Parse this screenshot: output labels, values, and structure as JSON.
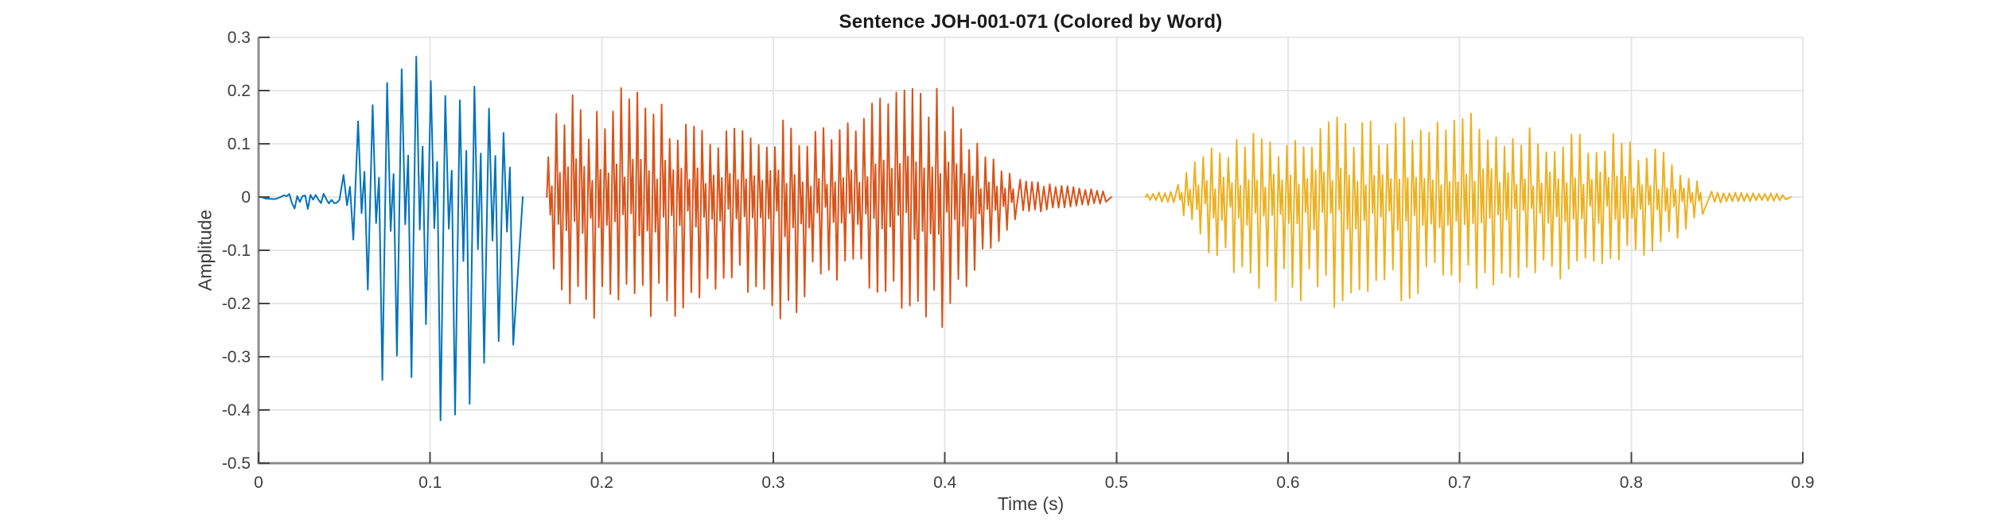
{
  "title": "Sentence JOH-001-071 (Colored by Word)",
  "xlabel": "Time (s)",
  "ylabel": "Amplitude",
  "axes": {
    "xticks": [
      0,
      0.1,
      0.2,
      0.3,
      0.4,
      0.5,
      0.6,
      0.7,
      0.8,
      0.9
    ],
    "xtick_labels": [
      "0",
      "0.1",
      "0.2",
      "0.3",
      "0.4",
      "0.5",
      "0.6",
      "0.7",
      "0.8",
      "0.9"
    ],
    "yticks": [
      0.3,
      0.2,
      0.1,
      0,
      -0.1,
      -0.2,
      -0.3,
      -0.4,
      -0.5
    ],
    "ytick_labels": [
      "0.3",
      "0.2",
      "0.1",
      "0",
      "-0.1",
      "-0.2",
      "-0.3",
      "-0.4",
      "-0.5"
    ],
    "grid": true,
    "grid_color": "#e6e6e6",
    "axis_color": "#8c8c8c",
    "tick_color": "#454545",
    "text_color": "#3d3d3d",
    "title_color": "#1a1a1a",
    "background": "#ffffff"
  },
  "chart_data": {
    "type": "line",
    "subtype": "audio-waveform",
    "title": "Sentence JOH-001-071 (Colored by Word)",
    "xlabel": "Time (s)",
    "ylabel": "Amplitude",
    "xlim": [
      0,
      0.9
    ],
    "ylim": [
      -0.5,
      0.3
    ],
    "grid": true,
    "legend": "none",
    "series": [
      {
        "name": "word_1",
        "color": "#0072BD",
        "t_start": 0.001,
        "t_end": 0.154,
        "peak_amplitude": 0.295,
        "min_amplitude": -0.44,
        "parts": [
          {
            "mode": "noise",
            "freq": 650,
            "env": [
              [
                0.001,
                -0.003,
                0.003
              ],
              [
                0.017,
                -0.005,
                0.005
              ],
              [
                0.02,
                -0.03,
                0.026
              ],
              [
                0.0235,
                -0.034,
                0.03
              ],
              [
                0.026,
                -0.016,
                0.015
              ],
              [
                0.029,
                -0.03,
                0.023
              ],
              [
                0.032,
                -0.022,
                0.018
              ],
              [
                0.035,
                -0.013,
                0.012
              ],
              [
                0.039,
                -0.016,
                0.014
              ],
              [
                0.043,
                -0.013,
                0.012
              ],
              [
                0.048,
                -0.011,
                0.01
              ]
            ]
          },
          {
            "mode": "zigzag",
            "freq": 118,
            "env": [
              [
                0.048,
                -0.025,
                0.035
              ],
              [
                0.052,
                -0.08,
                0.06
              ],
              [
                0.056,
                -0.13,
                0.1
              ],
              [
                0.06,
                -0.16,
                0.15
              ],
              [
                0.064,
                -0.24,
                0.18
              ],
              [
                0.068,
                -0.36,
                0.2
              ],
              [
                0.073,
                -0.44,
                0.21
              ],
              [
                0.079,
                -0.43,
                0.22
              ],
              [
                0.085,
                -0.35,
                0.24
              ],
              [
                0.091,
                -0.33,
                0.26
              ],
              [
                0.096,
                -0.38,
                0.27
              ],
              [
                0.101,
                -0.4,
                0.29
              ],
              [
                0.105,
                -0.44,
                0.295
              ],
              [
                0.11,
                -0.41,
                0.26
              ],
              [
                0.115,
                -0.43,
                0.25
              ],
              [
                0.121,
                -0.42,
                0.23
              ],
              [
                0.126,
                -0.36,
                0.22
              ],
              [
                0.131,
                -0.4,
                0.24
              ],
              [
                0.136,
                -0.31,
                0.22
              ],
              [
                0.141,
                -0.33,
                0.19
              ],
              [
                0.144,
                -0.35,
                0.17
              ],
              [
                0.147,
                -0.23,
                0.155
              ],
              [
                0.15,
                -0.12,
                0.15
              ],
              [
                0.154,
                -0.03,
                0.1
              ]
            ]
          }
        ]
      },
      {
        "name": "word_2",
        "color": "#D95319",
        "t_start": 0.168,
        "t_end": 0.497,
        "peak_amplitude": 0.215,
        "min_amplitude": -0.27,
        "parts": [
          {
            "mode": "zigzag",
            "freq": 212,
            "env": [
              [
                0.168,
                -0.06,
                0.05
              ],
              [
                0.172,
                -0.19,
                0.14
              ],
              [
                0.176,
                -0.23,
                0.2
              ],
              [
                0.182,
                -0.25,
                0.21
              ],
              [
                0.19,
                -0.23,
                0.165
              ],
              [
                0.2,
                -0.23,
                0.165
              ],
              [
                0.21,
                -0.24,
                0.2
              ],
              [
                0.216,
                -0.25,
                0.215
              ],
              [
                0.222,
                -0.24,
                0.205
              ],
              [
                0.232,
                -0.23,
                0.19
              ],
              [
                0.24,
                -0.235,
                0.175
              ],
              [
                0.25,
                -0.21,
                0.155
              ],
              [
                0.26,
                -0.19,
                0.15
              ],
              [
                0.27,
                -0.175,
                0.135
              ],
              [
                0.28,
                -0.185,
                0.145
              ],
              [
                0.29,
                -0.18,
                0.135
              ],
              [
                0.3,
                -0.21,
                0.14
              ],
              [
                0.306,
                -0.255,
                0.15
              ],
              [
                0.312,
                -0.22,
                0.14
              ],
              [
                0.32,
                -0.185,
                0.135
              ],
              [
                0.33,
                -0.165,
                0.14
              ],
              [
                0.34,
                -0.155,
                0.15
              ],
              [
                0.35,
                -0.165,
                0.16
              ],
              [
                0.36,
                -0.185,
                0.18
              ],
              [
                0.37,
                -0.225,
                0.195
              ],
              [
                0.38,
                -0.255,
                0.205
              ],
              [
                0.39,
                -0.27,
                0.215
              ],
              [
                0.398,
                -0.26,
                0.21
              ],
              [
                0.404,
                -0.225,
                0.185
              ],
              [
                0.41,
                -0.185,
                0.15
              ],
              [
                0.416,
                -0.145,
                0.12
              ],
              [
                0.422,
                -0.11,
                0.095
              ],
              [
                0.43,
                -0.085,
                0.07
              ],
              [
                0.438,
                -0.055,
                0.05
              ],
              [
                0.443,
                -0.04,
                0.04
              ]
            ]
          },
          {
            "mode": "zigzag",
            "simple": true,
            "freq": 290,
            "env": [
              [
                0.443,
                -0.035,
                0.035
              ],
              [
                0.455,
                -0.028,
                0.028
              ],
              [
                0.468,
                -0.023,
                0.023
              ],
              [
                0.482,
                -0.017,
                0.017
              ],
              [
                0.497,
                -0.011,
                0.011
              ]
            ]
          }
        ]
      },
      {
        "name": "word_3",
        "color": "#EDB120",
        "t_start": 0.517,
        "t_end": 0.893,
        "peak_amplitude": 0.16,
        "min_amplitude": -0.21,
        "parts": [
          {
            "mode": "zigzag",
            "simple": true,
            "freq": 290,
            "env": [
              [
                0.517,
                -0.007,
                0.007
              ],
              [
                0.526,
                -0.009,
                0.009
              ],
              [
                0.535,
                -0.013,
                0.013
              ]
            ]
          },
          {
            "mode": "zigzag",
            "freq": 205,
            "env": [
              [
                0.535,
                -0.025,
                0.022
              ],
              [
                0.541,
                -0.055,
                0.05
              ],
              [
                0.548,
                -0.085,
                0.075
              ],
              [
                0.555,
                -0.12,
                0.09
              ],
              [
                0.562,
                -0.14,
                0.105
              ],
              [
                0.57,
                -0.16,
                0.11
              ],
              [
                0.58,
                -0.18,
                0.12
              ],
              [
                0.59,
                -0.195,
                0.115
              ],
              [
                0.6,
                -0.2,
                0.125
              ],
              [
                0.61,
                -0.19,
                0.13
              ],
              [
                0.62,
                -0.21,
                0.145
              ],
              [
                0.63,
                -0.21,
                0.15
              ],
              [
                0.64,
                -0.195,
                0.145
              ],
              [
                0.65,
                -0.205,
                0.15
              ],
              [
                0.66,
                -0.2,
                0.155
              ],
              [
                0.67,
                -0.19,
                0.15
              ],
              [
                0.68,
                -0.185,
                0.145
              ],
              [
                0.69,
                -0.19,
                0.14
              ],
              [
                0.7,
                -0.19,
                0.145
              ],
              [
                0.71,
                -0.185,
                0.16
              ],
              [
                0.72,
                -0.17,
                0.145
              ],
              [
                0.73,
                -0.165,
                0.14
              ],
              [
                0.74,
                -0.17,
                0.135
              ],
              [
                0.75,
                -0.16,
                0.13
              ],
              [
                0.76,
                -0.155,
                0.135
              ],
              [
                0.77,
                -0.15,
                0.13
              ],
              [
                0.78,
                -0.155,
                0.125
              ],
              [
                0.79,
                -0.14,
                0.12
              ],
              [
                0.8,
                -0.125,
                0.11
              ],
              [
                0.81,
                -0.11,
                0.1
              ],
              [
                0.82,
                -0.09,
                0.085
              ],
              [
                0.828,
                -0.07,
                0.06
              ],
              [
                0.836,
                -0.045,
                0.04
              ],
              [
                0.845,
                -0.02,
                0.018
              ]
            ]
          },
          {
            "mode": "zigzag",
            "simple": true,
            "freq": 290,
            "env": [
              [
                0.846,
                -0.013,
                0.013
              ],
              [
                0.858,
                -0.009,
                0.009
              ],
              [
                0.872,
                -0.008,
                0.008
              ],
              [
                0.885,
                -0.007,
                0.007
              ],
              [
                0.893,
                -0.004,
                0.004
              ]
            ]
          }
        ]
      }
    ]
  }
}
